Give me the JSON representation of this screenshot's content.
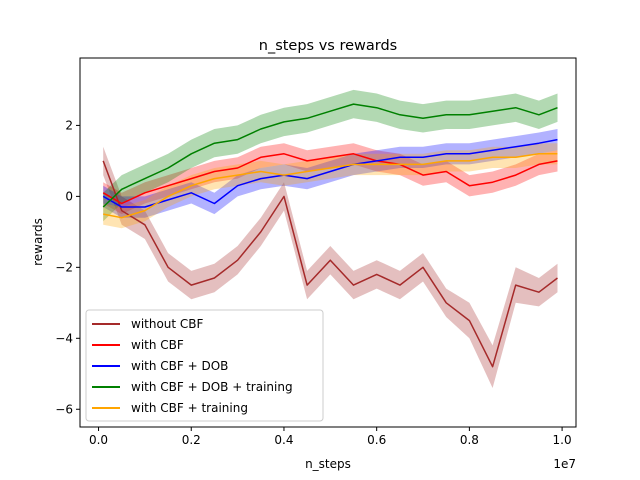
{
  "chart_data": {
    "type": "line",
    "title": "n_steps vs rewards",
    "xlabel": "n_steps",
    "ylabel": "rewards",
    "x_offset_label": "1e7",
    "xlim": [
      -0.04,
      1.03
    ],
    "ylim": [
      -6.5,
      3.9
    ],
    "xticks": [
      0.0,
      0.2,
      0.4,
      0.6,
      0.8,
      1.0
    ],
    "xtick_labels": [
      "0.0",
      "0.2",
      "0.4",
      "0.6",
      "0.8",
      "1.0"
    ],
    "yticks": [
      -6,
      -4,
      -2,
      0,
      2
    ],
    "ytick_labels": [
      "−6",
      "−4",
      "−2",
      "0",
      "2"
    ],
    "grid": false,
    "legend_position": "lower-left",
    "x": [
      0.01,
      0.05,
      0.1,
      0.15,
      0.2,
      0.25,
      0.3,
      0.35,
      0.4,
      0.45,
      0.5,
      0.55,
      0.6,
      0.65,
      0.7,
      0.75,
      0.8,
      0.85,
      0.9,
      0.95,
      0.99
    ],
    "series": [
      {
        "name": "without CBF",
        "color": "#a52a2a",
        "values": [
          1.0,
          -0.4,
          -0.8,
          -2.0,
          -2.5,
          -2.3,
          -1.8,
          -1.0,
          0.0,
          -2.5,
          -1.8,
          -2.5,
          -2.2,
          -2.5,
          -2.0,
          -3.0,
          -3.5,
          -4.8,
          -2.5,
          -2.7,
          -2.3
        ],
        "band": [
          0.4,
          0.4,
          0.4,
          0.4,
          0.4,
          0.4,
          0.4,
          0.4,
          0.4,
          0.4,
          0.4,
          0.4,
          0.4,
          0.4,
          0.4,
          0.4,
          0.5,
          0.6,
          0.5,
          0.4,
          0.4
        ]
      },
      {
        "name": "with CBF",
        "color": "#ff0000",
        "values": [
          0.1,
          -0.2,
          0.1,
          0.3,
          0.5,
          0.7,
          0.8,
          1.1,
          1.2,
          1.0,
          1.1,
          1.2,
          1.0,
          0.9,
          0.6,
          0.7,
          0.3,
          0.4,
          0.6,
          0.9,
          1.0
        ],
        "band": [
          0.3,
          0.3,
          0.3,
          0.3,
          0.3,
          0.3,
          0.3,
          0.3,
          0.3,
          0.3,
          0.3,
          0.3,
          0.3,
          0.3,
          0.3,
          0.3,
          0.3,
          0.3,
          0.3,
          0.3,
          0.3
        ]
      },
      {
        "name": "with CBF + DOB",
        "color": "#0000ff",
        "values": [
          0.0,
          -0.3,
          -0.3,
          -0.1,
          0.1,
          -0.2,
          0.3,
          0.5,
          0.6,
          0.5,
          0.7,
          0.9,
          1.0,
          1.1,
          1.1,
          1.2,
          1.2,
          1.3,
          1.4,
          1.5,
          1.6
        ],
        "band": [
          0.3,
          0.3,
          0.3,
          0.3,
          0.3,
          0.3,
          0.3,
          0.3,
          0.3,
          0.3,
          0.3,
          0.3,
          0.3,
          0.3,
          0.3,
          0.3,
          0.3,
          0.3,
          0.3,
          0.3,
          0.3
        ]
      },
      {
        "name": "with CBF + DOB + training",
        "color": "#008000",
        "values": [
          -0.3,
          0.2,
          0.5,
          0.8,
          1.2,
          1.5,
          1.6,
          1.9,
          2.1,
          2.2,
          2.4,
          2.6,
          2.5,
          2.3,
          2.2,
          2.3,
          2.3,
          2.4,
          2.5,
          2.3,
          2.5
        ],
        "band": [
          0.4,
          0.4,
          0.4,
          0.4,
          0.4,
          0.4,
          0.4,
          0.4,
          0.4,
          0.4,
          0.4,
          0.4,
          0.4,
          0.4,
          0.4,
          0.4,
          0.4,
          0.4,
          0.4,
          0.4,
          0.4
        ]
      },
      {
        "name": "with CBF + training",
        "color": "#ffa500",
        "values": [
          -0.5,
          -0.6,
          -0.4,
          0.0,
          0.3,
          0.5,
          0.6,
          0.7,
          0.6,
          0.7,
          0.8,
          0.9,
          0.9,
          0.9,
          0.9,
          1.0,
          1.0,
          1.1,
          1.1,
          1.2,
          1.2
        ],
        "band": [
          0.3,
          0.3,
          0.3,
          0.3,
          0.3,
          0.3,
          0.3,
          0.3,
          0.3,
          0.3,
          0.3,
          0.3,
          0.3,
          0.3,
          0.3,
          0.3,
          0.3,
          0.3,
          0.3,
          0.3,
          0.3
        ]
      }
    ]
  }
}
